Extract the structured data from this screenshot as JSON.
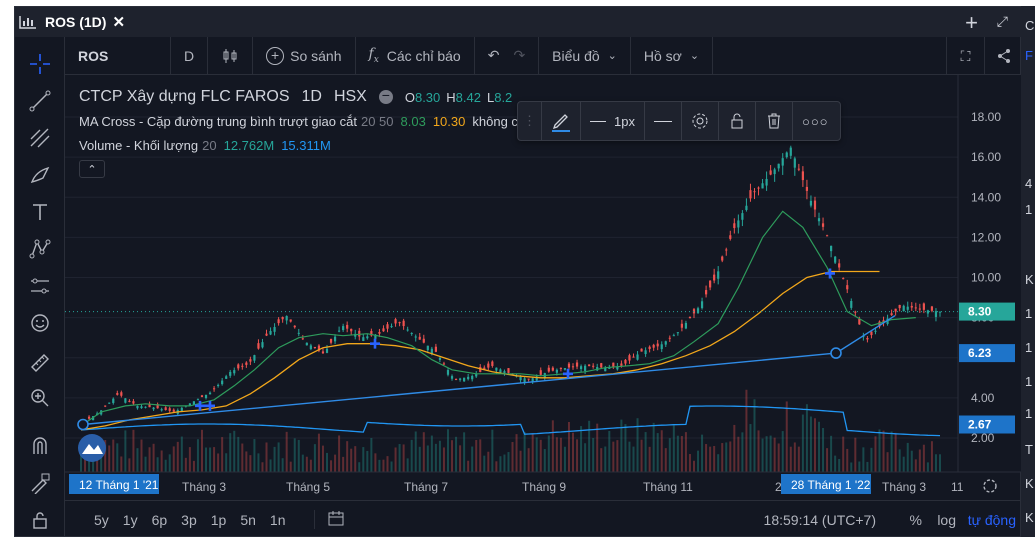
{
  "window": {
    "title": "ROS (1D)"
  },
  "toolbar": {
    "symbol": "ROS",
    "interval": "D",
    "compare_label": "So sánh",
    "indicators_label": "Các chỉ báo",
    "chart_label": "Biểu đồ",
    "profile_label": "Hồ sơ"
  },
  "legend": {
    "name": "CTCP Xây dựng FLC FAROS",
    "interval": "1D",
    "exchange": "HSX",
    "ohlc": [
      {
        "key": "O",
        "value": "8.30"
      },
      {
        "key": "H",
        "value": "8.42"
      },
      {
        "key": "L",
        "value": "8.2"
      }
    ],
    "ma_name": "MA Cross - Cặp đường trung bình trượt giao cắt",
    "ma_params": "20 50",
    "ma_val1": "8.03",
    "ma_val2": "10.30",
    "ma_note": "không c",
    "vol_name": "Volume - Khối lượng",
    "vol_param": "20",
    "vol_val1": "12.762M",
    "vol_val2": "15.311M"
  },
  "floatbar": {
    "width_label": "1px"
  },
  "colors": {
    "up": "#26a69a",
    "down": "#ef5350",
    "ma_fast": "#2e9c5c",
    "ma_slow": "#f2a71b",
    "trend": "#2f8be6",
    "accent": "#2962ff",
    "badge_blue": "#1e74c9"
  },
  "icons": [
    "crosshair-icon",
    "trendline-icon",
    "fib-icon",
    "brush-icon",
    "text-icon",
    "pattern-icon",
    "forecast-icon",
    "emoji-icon",
    "ruler-icon",
    "zoom-icon",
    "magnet-icon",
    "lock-draw-icon",
    "lock-icon",
    "settings-icon",
    "camera-icon",
    "share-icon"
  ],
  "chart_data": {
    "type": "candlestick",
    "symbol": "ROS",
    "interval": "1D",
    "ylim": [
      1.0,
      18.8
    ],
    "y_ticks": [
      2,
      4,
      6,
      8,
      10,
      12,
      14,
      16,
      18
    ],
    "y_tick_labels": [
      "2.00",
      "4.00",
      "6.00",
      "8.00",
      "10.00",
      "12.00",
      "14.00",
      "16.00",
      "18.00"
    ],
    "x_tick_labels": [
      "Tháng 3",
      "Tháng 5",
      "Tháng 7",
      "Tháng 9",
      "Tháng 11",
      "2022",
      "Tháng 3",
      "11"
    ],
    "x_range_labels": [
      "12 Tháng 1 '21",
      "28 Tháng 1 '22"
    ],
    "last_price": 8.3,
    "price_labels": [
      {
        "value": 8.3,
        "label": "8.30",
        "color": "#26a69a"
      },
      {
        "value": 6.23,
        "label": "6.23",
        "color": "#1e74c9"
      },
      {
        "value": 2.67,
        "label": "2.67",
        "color": "#1e74c9"
      }
    ],
    "close_path": [
      [
        "12 Jan 21",
        2.7
      ],
      [
        "Jan 21",
        3.3
      ],
      [
        "Feb 21",
        4.2
      ],
      [
        "Feb 21",
        3.6
      ],
      [
        "Mar 21",
        3.5
      ],
      [
        "Mar 21",
        3.3
      ],
      [
        "Mar 21",
        3.8
      ],
      [
        "Apr 21",
        4.3
      ],
      [
        "Apr 21",
        5.3
      ],
      [
        "Apr 21",
        5.7
      ],
      [
        "May 21",
        7.2
      ],
      [
        "May 21",
        8.1
      ],
      [
        "May 21",
        6.8
      ],
      [
        "May 21",
        6.2
      ],
      [
        "Jun 21",
        7.6
      ],
      [
        "Jun 21",
        7.0
      ],
      [
        "Jun 21",
        7.2
      ],
      [
        "Jun 21",
        7.8
      ],
      [
        "Jul 21",
        7.0
      ],
      [
        "Jul 21",
        6.3
      ],
      [
        "Jul 21",
        4.9
      ],
      [
        "Aug 21",
        5.1
      ],
      [
        "Aug 21",
        5.6
      ],
      [
        "Aug 21",
        5.2
      ],
      [
        "Sep 21",
        4.9
      ],
      [
        "Sep 21",
        5.3
      ],
      [
        "Sep 21",
        5.5
      ],
      [
        "Oct 21",
        5.6
      ],
      [
        "Oct 21",
        5.5
      ],
      [
        "Oct 21",
        5.6
      ],
      [
        "Nov 21",
        6.3
      ],
      [
        "Nov 21",
        6.6
      ],
      [
        "Nov 21",
        7.3
      ],
      [
        "Dec 21",
        8.4
      ],
      [
        "Dec 21",
        10.0
      ],
      [
        "Dec 21",
        12.5
      ],
      [
        "Dec 21",
        14.2
      ],
      [
        "Jan 22",
        15.2
      ],
      [
        "Jan 22",
        16.5
      ],
      [
        "Jan 22",
        14.0
      ],
      [
        "Jan 22",
        12.0
      ],
      [
        "Jan 22",
        9.5
      ],
      [
        "28 Jan 22",
        6.8
      ],
      [
        "Feb 22",
        7.8
      ],
      [
        "Feb 22",
        8.6
      ],
      [
        "Mar 22",
        8.4
      ],
      [
        "Mar 22",
        8.3
      ]
    ],
    "series": [
      {
        "name": "MA 20",
        "values": [
          2.6,
          3.3,
          3.6,
          3.7,
          3.6,
          3.6,
          3.9,
          4.6,
          5.4,
          6.5,
          7.0,
          7.2,
          7.1,
          7.2,
          7.0,
          6.6,
          5.9,
          5.4,
          5.2,
          5.2,
          5.2,
          5.1,
          5.2,
          5.3,
          5.5,
          5.6,
          5.7,
          6.1,
          6.8,
          7.7,
          9.5,
          12.0,
          13.3,
          12.5,
          10.5,
          8.3,
          7.6,
          7.9,
          8.0
        ]
      },
      {
        "name": "MA 50",
        "values": [
          2.4,
          2.6,
          2.9,
          3.1,
          3.3,
          3.4,
          3.6,
          4.2,
          5.0,
          5.9,
          6.5,
          6.7,
          6.7,
          6.6,
          6.4,
          6.0,
          5.6,
          5.3,
          5.1,
          5.0,
          5.0,
          5.1,
          5.2,
          5.4,
          5.7,
          6.1,
          6.6,
          7.3,
          8.2,
          9.2,
          10.0,
          10.3,
          10.3,
          10.3
        ]
      }
    ],
    "trendlines": [
      {
        "from": [
          "12 Jan 21",
          2.67
        ],
        "to": [
          "28 Jan 22",
          6.23
        ]
      },
      {
        "from": [
          "28 Jan 22",
          6.23
        ],
        "to": [
          "Mar 22",
          8.1
        ]
      }
    ],
    "volume_ma": [
      12.762,
      15.311
    ]
  },
  "bottombar": {
    "ranges": [
      "5y",
      "1y",
      "6p",
      "3p",
      "1p",
      "5n",
      "1n"
    ],
    "time": "18:59:14 (UTC+7)",
    "percent": "%",
    "log": "log",
    "auto": "tự động"
  },
  "rightpanel": {
    "chars": [
      "C",
      "F",
      "",
      "4",
      "1",
      "",
      "K",
      "1",
      "1",
      "1",
      "1",
      "T",
      "K",
      "K"
    ]
  }
}
